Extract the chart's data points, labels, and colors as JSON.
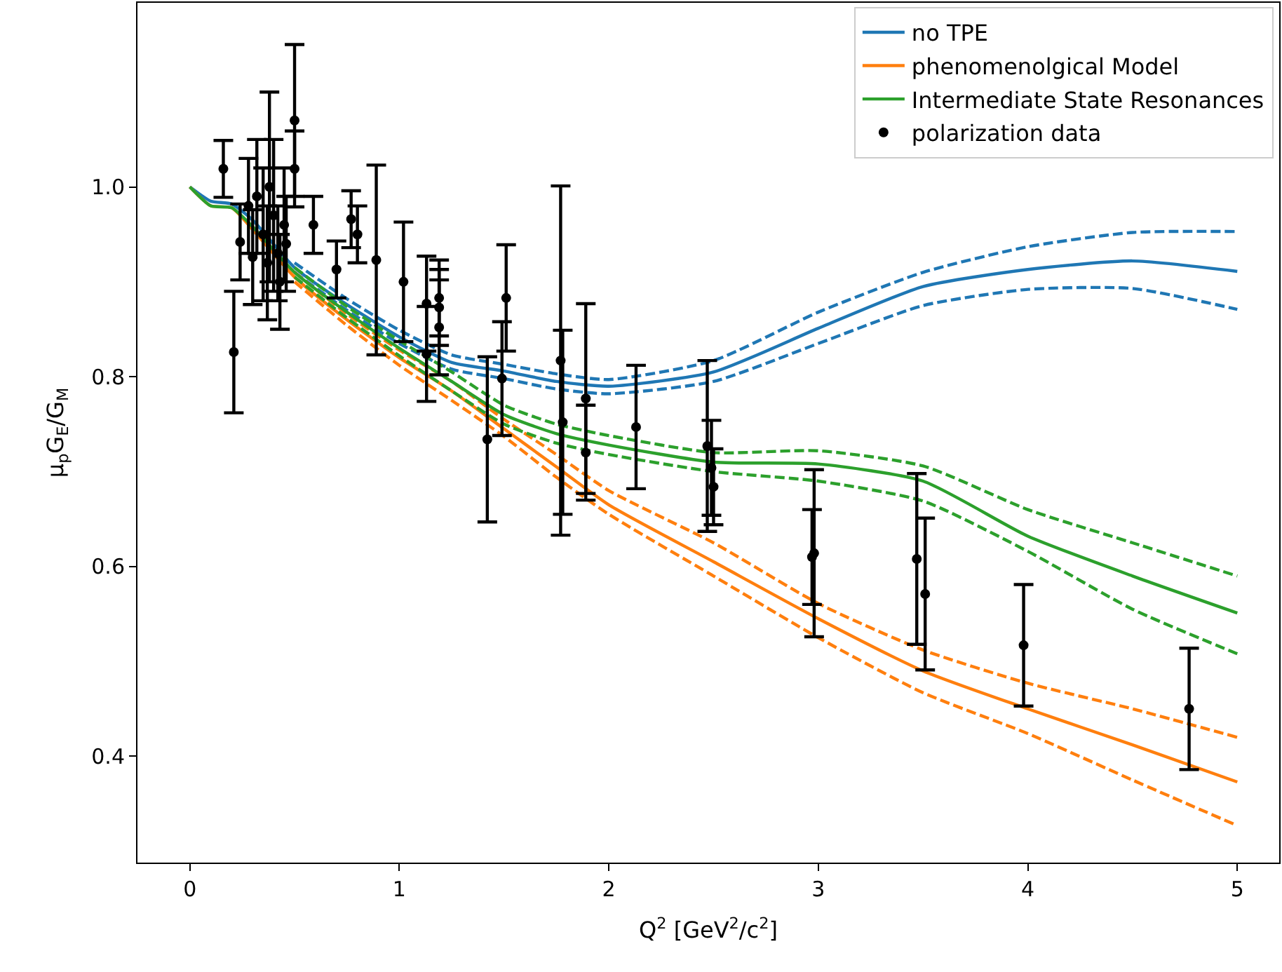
{
  "chart_data": {
    "type": "line",
    "xlabel": "Q$^{2}$ [GeV$^{2}$/c$^{2}$]",
    "ylabel": "μ$_{p}$G$_{E}$/G$_{M}$",
    "xlim": [
      -0.25,
      5.2
    ],
    "ylim": [
      0.288,
      1.194
    ],
    "xticks": [
      0,
      1,
      2,
      3,
      4,
      5
    ],
    "yticks": [
      0.4,
      0.6,
      0.8,
      {
        "value": 1.0,
        "label": "1.0"
      }
    ],
    "legend": "top right",
    "series": [
      {
        "name": "no TPE",
        "color": "#1f77b4",
        "line_style": "solid",
        "marker": "none",
        "x": [
          0,
          0.1,
          0.2,
          0.3,
          0.5,
          0.75,
          1,
          1.25,
          1.5,
          1.75,
          2,
          2.5,
          3,
          3.5,
          4,
          4.5,
          5
        ],
        "values": [
          1.0,
          0.985,
          0.982,
          0.965,
          0.915,
          0.876,
          0.842,
          0.815,
          0.806,
          0.795,
          0.79,
          0.805,
          0.851,
          0.895,
          0.913,
          0.922,
          0.911
        ]
      },
      {
        "color": "#1f77b4",
        "line_style": "dashed",
        "marker": "none",
        "x": [
          0.5,
          0.75,
          1,
          1.25,
          1.5,
          1.75,
          2,
          2.5,
          3,
          3.5,
          4,
          4.5,
          5
        ],
        "values": [
          0.92,
          0.882,
          0.849,
          0.823,
          0.813,
          0.803,
          0.797,
          0.817,
          0.868,
          0.91,
          0.937,
          0.952,
          0.953
        ]
      },
      {
        "color": "#1f77b4",
        "line_style": "dashed",
        "marker": "none",
        "x": [
          0.5,
          0.75,
          1,
          1.25,
          1.5,
          1.75,
          2,
          2.5,
          3,
          3.5,
          4,
          4.5,
          5
        ],
        "values": [
          0.91,
          0.87,
          0.835,
          0.808,
          0.798,
          0.787,
          0.782,
          0.795,
          0.835,
          0.875,
          0.892,
          0.893,
          0.871
        ]
      },
      {
        "name": "phenomenolgical Model",
        "color": "#ff7f0e",
        "line_style": "solid",
        "marker": "none",
        "x": [
          0,
          0.1,
          0.2,
          0.3,
          0.5,
          0.75,
          1,
          1.25,
          1.5,
          1.75,
          2,
          2.5,
          3,
          3.5,
          4,
          4.5,
          5
        ],
        "values": [
          1.0,
          0.98,
          0.978,
          0.955,
          0.905,
          0.86,
          0.82,
          0.785,
          0.745,
          0.705,
          0.665,
          0.605,
          0.545,
          0.49,
          0.45,
          0.412,
          0.373
        ]
      },
      {
        "color": "#ff7f0e",
        "line_style": "dashed",
        "marker": "none",
        "x": [
          0.5,
          0.75,
          1,
          1.25,
          1.5,
          1.75,
          2,
          2.5,
          3,
          3.5,
          4,
          4.5,
          5
        ],
        "values": [
          0.91,
          0.866,
          0.828,
          0.795,
          0.755,
          0.718,
          0.68,
          0.625,
          0.561,
          0.512,
          0.477,
          0.45,
          0.42
        ]
      },
      {
        "color": "#ff7f0e",
        "line_style": "dashed",
        "marker": "none",
        "x": [
          0.5,
          0.75,
          1,
          1.25,
          1.5,
          1.75,
          2,
          2.5,
          3,
          3.5,
          4,
          4.5,
          5
        ],
        "values": [
          0.9,
          0.854,
          0.812,
          0.775,
          0.737,
          0.694,
          0.655,
          0.59,
          0.525,
          0.467,
          0.424,
          0.375,
          0.327
        ]
      },
      {
        "name": "Intermediate State Resonances",
        "color": "#2ca02c",
        "line_style": "solid",
        "marker": "none",
        "x": [
          0,
          0.1,
          0.2,
          0.3,
          0.5,
          0.75,
          1,
          1.25,
          1.5,
          1.75,
          2,
          2.5,
          3,
          3.5,
          4,
          4.5,
          5
        ],
        "values": [
          1.0,
          0.98,
          0.978,
          0.958,
          0.91,
          0.868,
          0.83,
          0.795,
          0.76,
          0.74,
          0.728,
          0.71,
          0.708,
          0.69,
          0.632,
          0.59,
          0.551
        ]
      },
      {
        "color": "#2ca02c",
        "line_style": "dashed",
        "marker": "none",
        "x": [
          0.5,
          0.75,
          1,
          1.25,
          1.5,
          1.75,
          2,
          2.5,
          3,
          3.5,
          4,
          4.5,
          5
        ],
        "values": [
          0.915,
          0.874,
          0.838,
          0.805,
          0.77,
          0.75,
          0.738,
          0.72,
          0.722,
          0.706,
          0.66,
          0.625,
          0.59
        ]
      },
      {
        "color": "#2ca02c",
        "line_style": "dashed",
        "marker": "none",
        "x": [
          0.5,
          0.75,
          1,
          1.25,
          1.5,
          1.75,
          2,
          2.5,
          3,
          3.5,
          4,
          4.5,
          5
        ],
        "values": [
          0.905,
          0.862,
          0.822,
          0.785,
          0.75,
          0.73,
          0.718,
          0.7,
          0.69,
          0.669,
          0.616,
          0.555,
          0.508
        ]
      },
      {
        "name": "polarization data",
        "type": "scatter",
        "color": "#000000",
        "marker": "circle",
        "x": [
          0.16,
          0.21,
          0.24,
          0.28,
          0.3,
          0.32,
          0.35,
          0.37,
          0.38,
          0.4,
          0.42,
          0.43,
          0.45,
          0.46,
          0.5,
          0.5,
          0.59,
          0.7,
          0.77,
          0.8,
          0.89,
          1.02,
          1.13,
          1.13,
          1.19,
          1.19,
          1.19,
          1.42,
          1.49,
          1.51,
          1.77,
          1.78,
          1.89,
          1.89,
          2.13,
          2.47,
          2.49,
          2.5,
          2.97,
          2.98,
          3.47,
          3.51,
          3.98,
          4.77
        ],
        "values": [
          1.019,
          0.826,
          0.942,
          0.98,
          0.926,
          0.99,
          0.95,
          0.92,
          1.0,
          0.97,
          0.93,
          0.9,
          0.96,
          0.94,
          1.07,
          1.019,
          0.96,
          0.913,
          0.966,
          0.95,
          0.923,
          0.9,
          0.877,
          0.824,
          0.883,
          0.873,
          0.852,
          0.734,
          0.798,
          0.883,
          0.817,
          0.752,
          0.777,
          0.72,
          0.747,
          0.727,
          0.704,
          0.684,
          0.61,
          0.614,
          0.608,
          0.571,
          0.517,
          0.45
        ],
        "errors": [
          0.03,
          0.064,
          0.04,
          0.05,
          0.05,
          0.06,
          0.07,
          0.06,
          0.1,
          0.08,
          0.05,
          0.05,
          0.06,
          0.05,
          0.08,
          0.04,
          0.03,
          0.03,
          0.03,
          0.03,
          0.1,
          0.063,
          0.05,
          0.05,
          0.04,
          0.04,
          0.05,
          0.087,
          0.06,
          0.056,
          0.184,
          0.097,
          0.1,
          0.05,
          0.065,
          0.09,
          0.05,
          0.04,
          0.05,
          0.088,
          0.09,
          0.08,
          0.064,
          0.064
        ]
      }
    ]
  }
}
